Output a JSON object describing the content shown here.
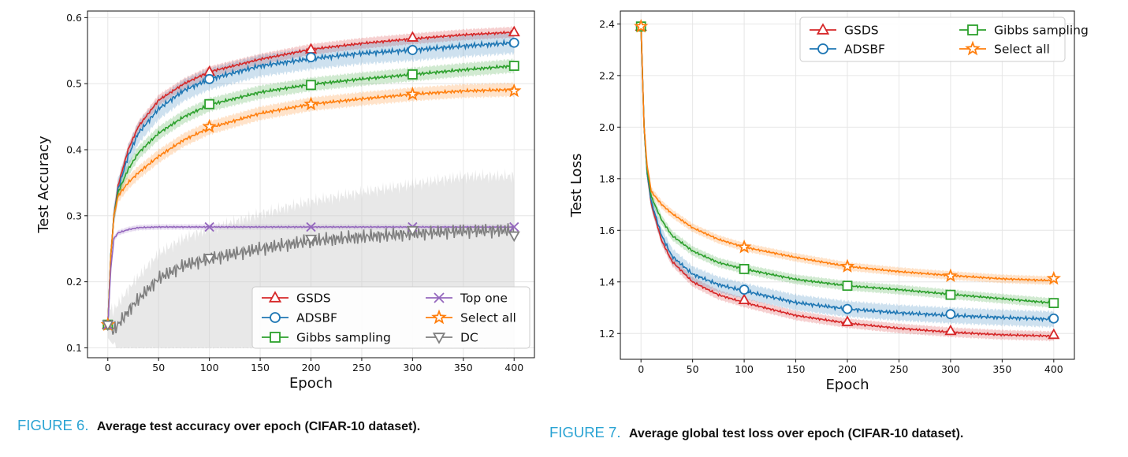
{
  "colors": {
    "GSDS": "#d62728",
    "ADSBF": "#1f77b4",
    "Gibbs sampling": "#2ca02c",
    "Top one": "#9467bd",
    "Select all": "#ff7f0e",
    "DC": "#7f7f7f"
  },
  "captions": [
    {
      "num": "FIGURE 6.",
      "text": "Average test accuracy over epoch (CIFAR-10 dataset)."
    },
    {
      "num": "FIGURE 7.",
      "text": "Average global test loss over epoch (CIFAR-10 dataset)."
    }
  ],
  "chart_data": [
    {
      "type": "line",
      "xlabel": "Epoch",
      "ylabel": "Test Accuracy",
      "xlim": [
        -20,
        420
      ],
      "ylim": [
        0.085,
        0.61
      ],
      "xticks": [
        0,
        50,
        100,
        150,
        200,
        250,
        300,
        350,
        400
      ],
      "yticks": [
        0.1,
        0.2,
        0.3,
        0.4,
        0.5,
        0.6
      ],
      "ytick_labels": [
        "0.1",
        "0.2",
        "0.3",
        "0.4",
        "0.5",
        "0.6"
      ],
      "grid": true,
      "legend": {
        "location": "bottom-right",
        "columns": 2,
        "order": [
          "GSDS",
          "ADSBF",
          "Gibbs sampling",
          "Top one",
          "Select all",
          "DC"
        ]
      },
      "series": [
        {
          "name": "GSDS",
          "marker": "triangle-up",
          "band": 0.008,
          "x": [
            0,
            3,
            6,
            10,
            20,
            30,
            50,
            75,
            100,
            150,
            200,
            250,
            300,
            350,
            400
          ],
          "values": [
            0.135,
            0.24,
            0.3,
            0.345,
            0.4,
            0.435,
            0.475,
            0.5,
            0.518,
            0.537,
            0.552,
            0.561,
            0.568,
            0.574,
            0.578
          ],
          "marker_x": [
            0,
            100,
            200,
            300,
            400
          ],
          "marker_y": [
            0.135,
            0.518,
            0.552,
            0.57,
            0.578
          ]
        },
        {
          "name": "ADSBF",
          "marker": "circle",
          "band": 0.016,
          "x": [
            0,
            3,
            6,
            10,
            20,
            30,
            50,
            75,
            100,
            150,
            200,
            250,
            300,
            350,
            400
          ],
          "values": [
            0.135,
            0.24,
            0.3,
            0.34,
            0.39,
            0.425,
            0.462,
            0.49,
            0.507,
            0.527,
            0.538,
            0.546,
            0.551,
            0.557,
            0.562
          ],
          "marker_x": [
            0,
            100,
            200,
            300,
            400
          ],
          "marker_y": [
            0.135,
            0.507,
            0.54,
            0.551,
            0.562
          ]
        },
        {
          "name": "Gibbs sampling",
          "marker": "square",
          "band": 0.01,
          "x": [
            0,
            3,
            6,
            10,
            20,
            30,
            50,
            75,
            100,
            150,
            200,
            250,
            300,
            350,
            400
          ],
          "values": [
            0.135,
            0.24,
            0.3,
            0.335,
            0.37,
            0.395,
            0.425,
            0.45,
            0.468,
            0.487,
            0.499,
            0.507,
            0.514,
            0.521,
            0.527
          ],
          "marker_x": [
            0,
            100,
            200,
            300,
            400
          ],
          "marker_y": [
            0.135,
            0.469,
            0.498,
            0.514,
            0.527
          ]
        },
        {
          "name": "Select all",
          "marker": "star",
          "band": 0.01,
          "x": [
            0,
            3,
            6,
            10,
            20,
            30,
            50,
            75,
            100,
            150,
            200,
            250,
            300,
            350,
            400
          ],
          "values": [
            0.135,
            0.24,
            0.3,
            0.33,
            0.35,
            0.365,
            0.39,
            0.415,
            0.433,
            0.455,
            0.469,
            0.477,
            0.484,
            0.489,
            0.491
          ],
          "marker_x": [
            0,
            100,
            200,
            300,
            400
          ],
          "marker_y": [
            0.135,
            0.435,
            0.469,
            0.484,
            0.489
          ]
        },
        {
          "name": "Top one",
          "marker": "x",
          "band": 0.004,
          "x": [
            0,
            3,
            6,
            10,
            20,
            30,
            50,
            100,
            200,
            300,
            400
          ],
          "values": [
            0.135,
            0.22,
            0.265,
            0.274,
            0.279,
            0.282,
            0.283,
            0.283,
            0.283,
            0.283,
            0.283
          ],
          "marker_x": [
            0,
            100,
            200,
            300,
            400
          ],
          "marker_y": [
            0.135,
            0.283,
            0.283,
            0.283,
            0.283
          ]
        },
        {
          "name": "DC",
          "marker": "triangle-down",
          "band_lower": 0.1,
          "band_upper_end": 0.36,
          "x": [
            0,
            5,
            10,
            25,
            50,
            75,
            100,
            150,
            200,
            250,
            300,
            350,
            400
          ],
          "values": [
            0.135,
            0.125,
            0.135,
            0.165,
            0.205,
            0.225,
            0.235,
            0.25,
            0.262,
            0.268,
            0.273,
            0.277,
            0.278
          ],
          "marker_x": [
            0,
            100,
            200,
            300,
            400
          ],
          "marker_y": [
            0.135,
            0.236,
            0.265,
            0.278,
            0.27
          ]
        }
      ]
    },
    {
      "type": "line",
      "xlabel": "Epoch",
      "ylabel": "Test Loss",
      "xlim": [
        -20,
        420
      ],
      "ylim": [
        1.1,
        2.45
      ],
      "xticks": [
        0,
        50,
        100,
        150,
        200,
        250,
        300,
        350,
        400
      ],
      "yticks": [
        1.2,
        1.4,
        1.6,
        1.8,
        2.0,
        2.2,
        2.4
      ],
      "ytick_labels": [
        "1.2",
        "1.4",
        "1.6",
        "1.8",
        "2.0",
        "2.2",
        "2.4"
      ],
      "grid": true,
      "legend": {
        "location": "top-right",
        "columns": 2,
        "order": [
          "GSDS",
          "ADSBF",
          "Gibbs sampling",
          "Select all"
        ]
      },
      "series": [
        {
          "name": "GSDS",
          "marker": "triangle-up",
          "band": 0.018,
          "x": [
            0,
            3,
            6,
            10,
            20,
            30,
            50,
            75,
            100,
            150,
            200,
            250,
            300,
            350,
            400
          ],
          "values": [
            2.39,
            2.0,
            1.82,
            1.7,
            1.56,
            1.48,
            1.4,
            1.35,
            1.32,
            1.27,
            1.24,
            1.22,
            1.205,
            1.195,
            1.19
          ],
          "marker_x": [
            0,
            100,
            200,
            300,
            400
          ],
          "marker_y": [
            2.39,
            1.33,
            1.245,
            1.21,
            1.195
          ]
        },
        {
          "name": "ADSBF",
          "marker": "circle",
          "band": 0.03,
          "x": [
            0,
            3,
            6,
            10,
            20,
            30,
            50,
            75,
            100,
            150,
            200,
            250,
            300,
            350,
            400
          ],
          "values": [
            2.39,
            2.0,
            1.82,
            1.71,
            1.58,
            1.5,
            1.43,
            1.39,
            1.365,
            1.32,
            1.295,
            1.28,
            1.27,
            1.262,
            1.255
          ],
          "marker_x": [
            0,
            100,
            200,
            300,
            400
          ],
          "marker_y": [
            2.39,
            1.37,
            1.295,
            1.275,
            1.258
          ]
        },
        {
          "name": "Gibbs sampling",
          "marker": "square",
          "band": 0.018,
          "x": [
            0,
            3,
            6,
            10,
            20,
            30,
            50,
            75,
            100,
            150,
            200,
            250,
            300,
            350,
            400
          ],
          "values": [
            2.39,
            2.0,
            1.83,
            1.73,
            1.64,
            1.58,
            1.52,
            1.475,
            1.45,
            1.41,
            1.385,
            1.37,
            1.352,
            1.335,
            1.318
          ],
          "marker_x": [
            0,
            100,
            200,
            300,
            400
          ],
          "marker_y": [
            2.39,
            1.45,
            1.385,
            1.35,
            1.318
          ]
        },
        {
          "name": "Select all",
          "marker": "star",
          "band": 0.016,
          "x": [
            0,
            3,
            6,
            10,
            20,
            30,
            50,
            75,
            100,
            150,
            200,
            250,
            300,
            350,
            400
          ],
          "values": [
            2.39,
            2.0,
            1.85,
            1.75,
            1.7,
            1.665,
            1.61,
            1.565,
            1.535,
            1.495,
            1.46,
            1.44,
            1.425,
            1.412,
            1.405
          ],
          "marker_x": [
            0,
            100,
            200,
            300,
            400
          ],
          "marker_y": [
            2.39,
            1.535,
            1.46,
            1.423,
            1.413
          ]
        }
      ]
    }
  ]
}
